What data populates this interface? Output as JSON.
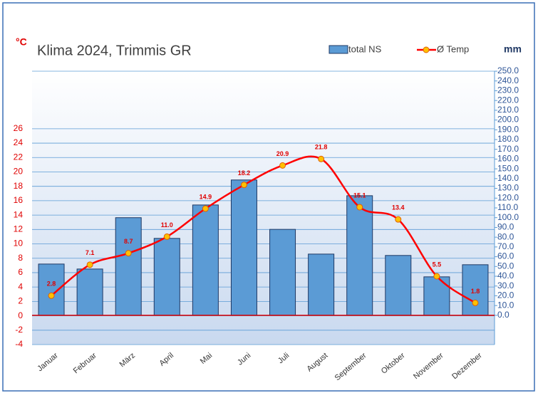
{
  "chart_data": {
    "type": "bar-line",
    "title": "Klima 2024, Trimmis GR",
    "y_unit": "°C",
    "y2_unit": "mm",
    "categories": [
      "Januar",
      "Februar",
      "März",
      "April",
      "Mai",
      "Juni",
      "Juli",
      "August",
      "September",
      "Oktober",
      "November",
      "Dezember"
    ],
    "series": [
      {
        "name": "total NS",
        "type": "bar",
        "axis": "y2",
        "color": "#5b9bd5",
        "values": [
          52.5,
          47.4,
          100,
          78.8,
          113,
          138.6,
          88,
          62.7,
          122.5,
          61.3,
          39.4,
          51.8
        ]
      },
      {
        "name": "Ø Temp",
        "type": "line",
        "axis": "y",
        "color": "#ff0000",
        "marker_color": "#ffc000",
        "values": [
          2.8,
          7.1,
          8.7,
          11.0,
          14.9,
          18.2,
          20.9,
          21.8,
          15.1,
          13.4,
          5.5,
          1.8
        ],
        "value_labels": [
          "2.8",
          "7.1",
          "8.7",
          "11.0",
          "14.9",
          "18.2",
          "20.9",
          "21.8",
          "15.1",
          "13.4",
          "5.5",
          "1.8"
        ]
      }
    ],
    "ylim": [
      -4,
      34
    ],
    "yticks": [
      -4,
      -2,
      0,
      2,
      4,
      6,
      8,
      10,
      12,
      14,
      16,
      18,
      20,
      22,
      24,
      26
    ],
    "y2lim": [
      -30,
      250
    ],
    "y2ticks": [
      {
        "value": 0,
        "label": "0.0"
      },
      {
        "value": 10,
        "label": "10.0"
      },
      {
        "value": 20,
        "label": "20.0"
      },
      {
        "value": 30,
        "label": "30.0"
      },
      {
        "value": 40,
        "label": "40.0"
      },
      {
        "value": 50,
        "label": "50.0"
      },
      {
        "value": 60,
        "label": "60.0"
      },
      {
        "value": 70,
        "label": "70.0"
      },
      {
        "value": 80,
        "label": "80.0"
      },
      {
        "value": 90,
        "label": "90.0"
      },
      {
        "value": 100,
        "label": "100.0"
      },
      {
        "value": 110,
        "label": "110.0"
      },
      {
        "value": 120,
        "label": "120.0"
      },
      {
        "value": 130,
        "label": "130.0"
      },
      {
        "value": 140,
        "label": "140.0"
      },
      {
        "value": 150,
        "label": "150.0"
      },
      {
        "value": 160,
        "label": "160.0"
      },
      {
        "value": 170,
        "label": "170.0"
      },
      {
        "value": 180,
        "label": "180.0"
      },
      {
        "value": 190,
        "label": "190.0"
      },
      {
        "value": 200,
        "label": "200.0"
      },
      {
        "value": 210,
        "label": "210.0"
      },
      {
        "value": 220,
        "label": "220.0"
      },
      {
        "value": 230,
        "label": "230.0"
      },
      {
        "value": 240,
        "label": "240.0"
      },
      {
        "value": 250,
        "label": "250.0"
      }
    ],
    "grid": true
  }
}
